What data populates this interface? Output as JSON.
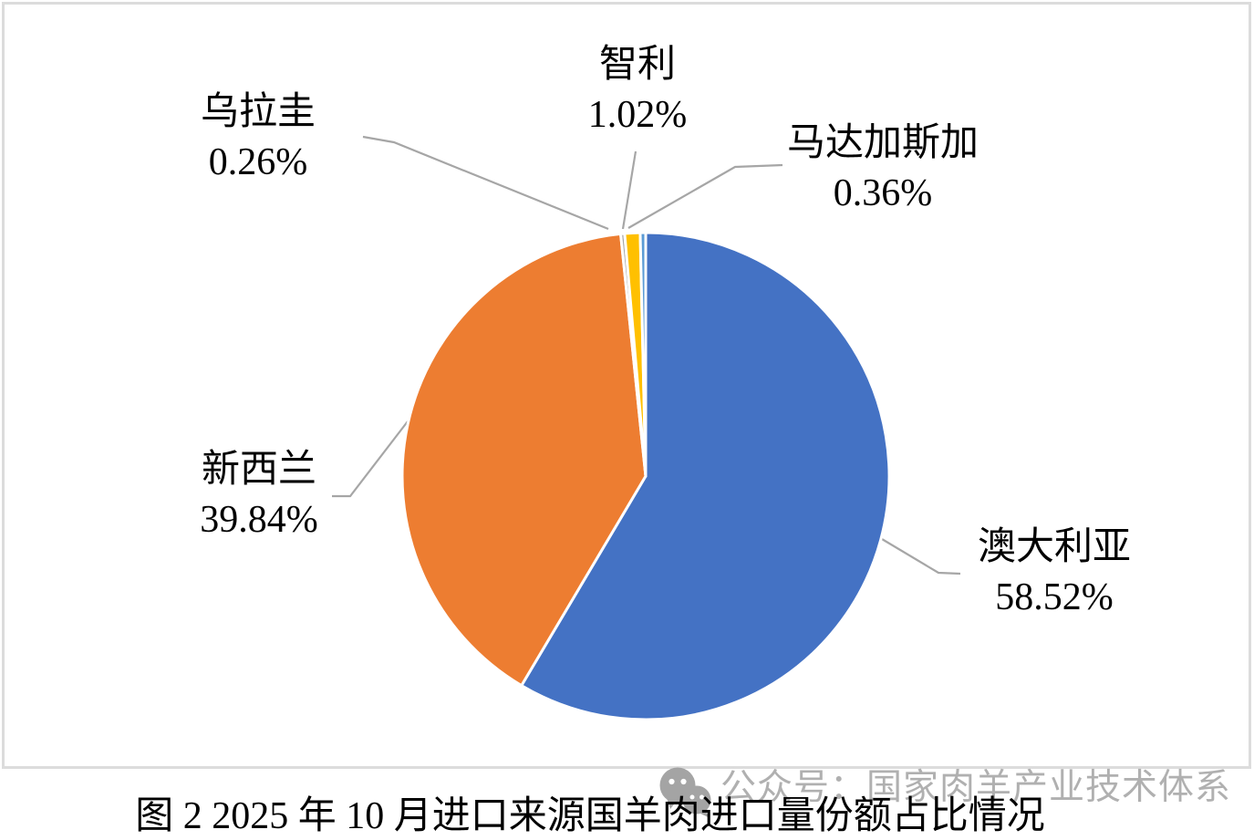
{
  "chart_data": {
    "type": "pie",
    "title": "图 2 2025 年 10 月进口来源国羊肉进口量份额占比情况",
    "legend": "none",
    "data_labels": "outside-with-leader-lines",
    "start_angle_deg": 0,
    "direction": "clockwise",
    "leader_line_color": "#A6A6A6",
    "separator_color": "#FFFFFF",
    "series": [
      {
        "key": "australia",
        "name": "澳大利亚",
        "value": 58.52,
        "label": "58.52%",
        "color": "#4472C4"
      },
      {
        "key": "newzealand",
        "name": "新西兰",
        "value": 39.84,
        "label": "39.84%",
        "color": "#ED7D31"
      },
      {
        "key": "uruguay",
        "name": "乌拉圭",
        "value": 0.26,
        "label": "0.26%",
        "color": "#A5A5A5"
      },
      {
        "key": "chile",
        "name": "智利",
        "value": 1.02,
        "label": "1.02%",
        "color": "#FFC000"
      },
      {
        "key": "madagascar",
        "name": "马达加斯加",
        "value": 0.36,
        "label": "0.36%",
        "color": "#5B9BD5"
      }
    ]
  },
  "watermark": {
    "icon": "wechat-icon",
    "text": "公众号：国家肉羊产业技术体系"
  }
}
